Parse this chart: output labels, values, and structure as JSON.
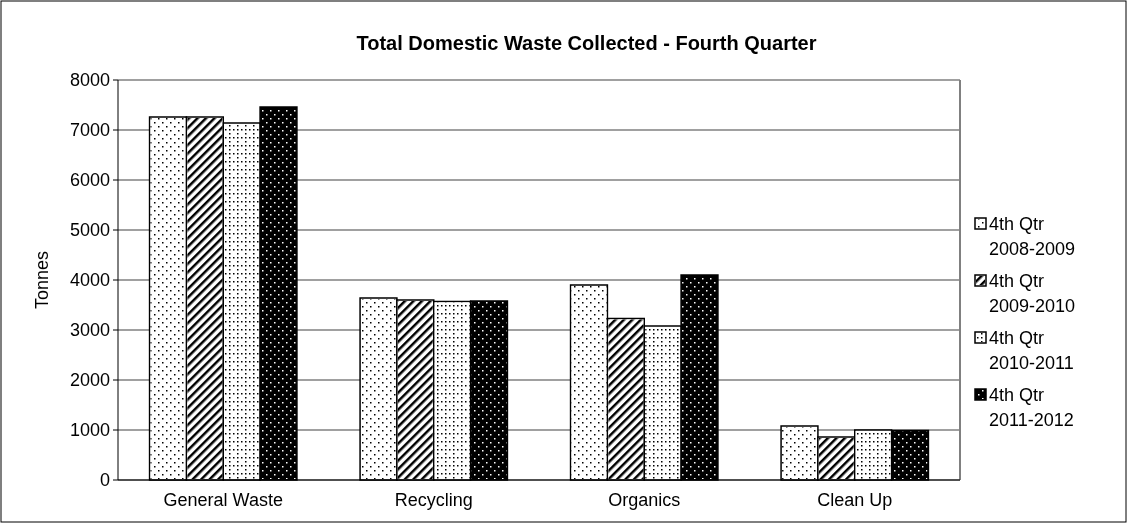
{
  "chart_data": {
    "type": "bar",
    "title": "Total Domestic Waste Collected - Fourth Quarter",
    "ylabel": "Tonnes",
    "categories": [
      "General Waste",
      "Recycling",
      "Organics",
      "Clean Up"
    ],
    "series": [
      {
        "name": "4th Qtr 2008-2009",
        "color": "#ffffff",
        "values": [
          7260,
          3640,
          3900,
          1080
        ]
      },
      {
        "name": "4th Qtr 2009-2010",
        "color": "#ffffff",
        "values": [
          7260,
          3600,
          3230,
          860
        ]
      },
      {
        "name": "4th Qtr 2010-2011",
        "color": "#ffffff",
        "values": [
          7140,
          3570,
          3080,
          1000
        ]
      },
      {
        "name": "4th Qtr 2011-2012",
        "color": "#000000",
        "values": [
          7460,
          3580,
          4100,
          990
        ]
      }
    ],
    "ylim": [
      0,
      8000
    ],
    "yticks": [
      0,
      1000,
      2000,
      3000,
      4000,
      5000,
      6000,
      7000,
      8000
    ],
    "grid": "y",
    "legend": "right"
  }
}
